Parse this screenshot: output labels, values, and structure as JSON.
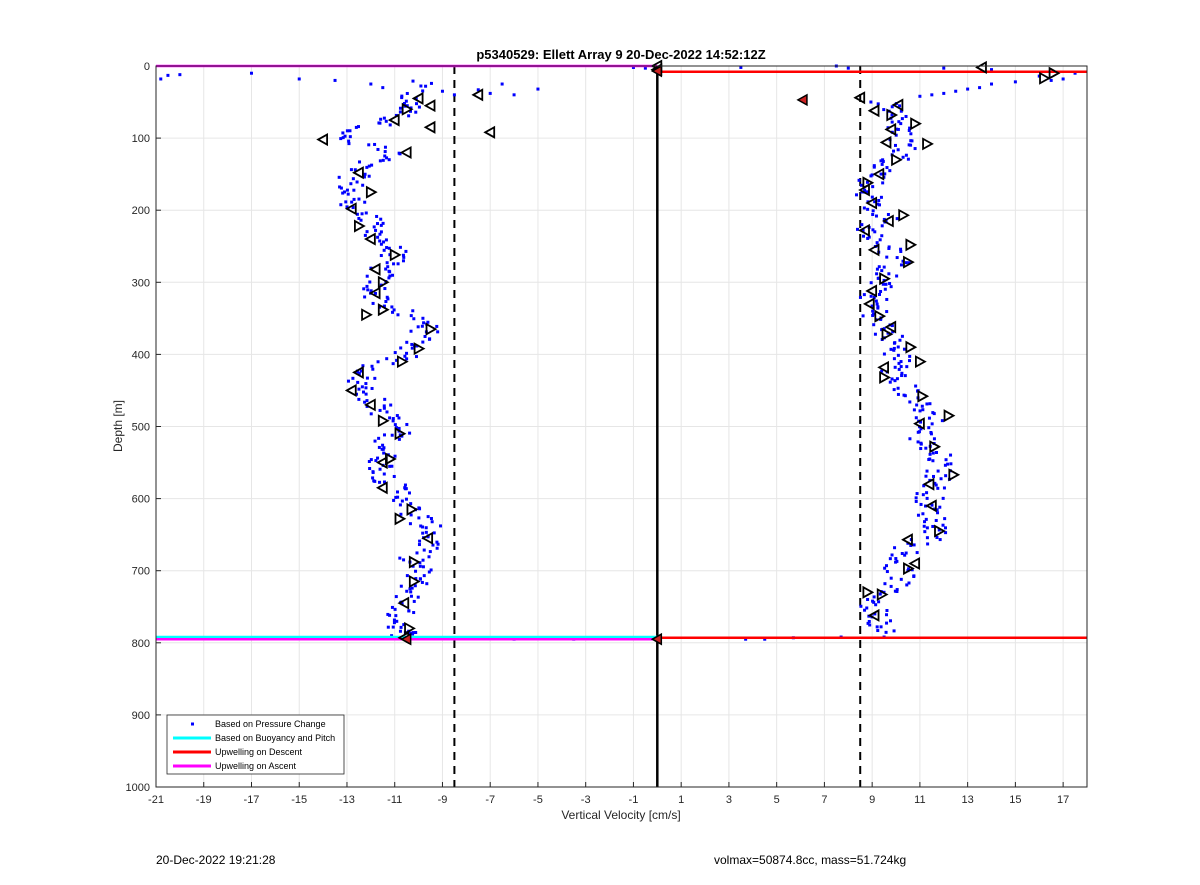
{
  "chart_data": {
    "type": "scatter",
    "title": "p5340529: Ellett Array 9 20-Dec-2022 14:52:12Z",
    "xlabel": "Vertical Velocity [cm/s]",
    "ylabel": "Depth [m]",
    "xlim": [
      -21,
      18
    ],
    "ylim": [
      0,
      1000
    ],
    "y_reversed": true,
    "grid": true,
    "legend_placement": "bottom-left",
    "xticks": [
      -21,
      -19,
      -17,
      -15,
      -13,
      -11,
      -9,
      -7,
      -5,
      -3,
      -1,
      1,
      3,
      5,
      7,
      9,
      11,
      13,
      15,
      17
    ],
    "yticks": [
      0,
      100,
      200,
      300,
      400,
      500,
      600,
      700,
      800,
      900,
      1000
    ],
    "legend": [
      {
        "label": "Based on Pressure Change",
        "color": "#0000ff",
        "style": "dot"
      },
      {
        "label": "Based on Buoyancy and Pitch",
        "color": "#00ffff",
        "style": "line"
      },
      {
        "label": "Upwelling on Descent",
        "color": "#ff0000",
        "style": "line"
      },
      {
        "label": "Upwelling on Ascent",
        "color": "#ff00ff",
        "style": "line"
      }
    ],
    "reference_lines": {
      "zero_solid_x": 0,
      "dashed_x": [
        -8.5,
        8.5
      ]
    },
    "series": [
      {
        "name": "Upwelling on Ascent",
        "color": "#ff00ff",
        "x": [
          -21,
          0
        ],
        "y": [
          0,
          0
        ]
      },
      {
        "name": "Upwelling on Descent",
        "color": "#ff0000",
        "x": [
          0,
          18
        ],
        "y": [
          8,
          8
        ]
      },
      {
        "name": "Based on Buoyancy and Pitch",
        "color": "#00ffff",
        "x": [
          -21,
          0
        ],
        "y": [
          792,
          792
        ]
      },
      {
        "name": "Upwelling on Ascent",
        "color": "#ff00ff",
        "x": [
          -21,
          0
        ],
        "y": [
          795,
          795
        ]
      },
      {
        "name": "Upwelling on Descent",
        "color": "#ff0000",
        "x": [
          0,
          18
        ],
        "y": [
          793,
          793
        ]
      }
    ],
    "ascent_profile": {
      "depth": [
        20,
        50,
        60,
        80,
        100,
        120,
        140,
        160,
        180,
        200,
        220,
        240,
        260,
        280,
        300,
        320,
        340,
        360,
        380,
        400,
        420,
        440,
        460,
        480,
        500,
        520,
        540,
        560,
        580,
        600,
        620,
        640,
        660,
        680,
        700,
        720,
        740,
        760,
        780,
        790
      ],
      "velocity": [
        -10,
        -10.5,
        -10.3,
        -11.5,
        -13.5,
        -11,
        -12.5,
        -12.8,
        -13,
        -12.5,
        -12,
        -11.5,
        -11,
        -11.5,
        -11.8,
        -11.8,
        -11,
        -9.5,
        -10,
        -10.5,
        -12,
        -12.5,
        -12,
        -11.5,
        -10.8,
        -11.2,
        -11.5,
        -11.5,
        -11.2,
        -10.5,
        -10.3,
        -9.5,
        -9.5,
        -10.2,
        -10,
        -10.2,
        -10.5,
        -10.8,
        -10.7,
        -10.5
      ],
      "spread": 0.6
    },
    "descent_profile": {
      "depth": [
        50,
        70,
        90,
        110,
        130,
        150,
        170,
        190,
        210,
        230,
        250,
        270,
        290,
        310,
        330,
        350,
        370,
        390,
        410,
        430,
        450,
        470,
        490,
        510,
        530,
        550,
        570,
        590,
        610,
        630,
        650,
        670,
        690,
        710,
        730,
        750,
        770,
        785
      ],
      "velocity": [
        9.5,
        10.2,
        10,
        10.5,
        10,
        9.3,
        8.8,
        9,
        9.5,
        8.7,
        9.6,
        10,
        9.5,
        9.2,
        9,
        9.2,
        9.6,
        10,
        10.2,
        9.8,
        10.5,
        11,
        11.5,
        11,
        11.4,
        12,
        11.8,
        11.5,
        11.3,
        11.6,
        11.8,
        10.5,
        10,
        10.3,
        9.5,
        9,
        9.3,
        9.8
      ],
      "spread": 0.6
    },
    "surface_scatter": [
      {
        "x": -20.8,
        "y": 18
      },
      {
        "x": -20.5,
        "y": 13
      },
      {
        "x": -20,
        "y": 12
      },
      {
        "x": -17,
        "y": 10
      },
      {
        "x": -15,
        "y": 18
      },
      {
        "x": -13.5,
        "y": 20
      },
      {
        "x": -12,
        "y": 25
      },
      {
        "x": -11.5,
        "y": 30
      },
      {
        "x": -9,
        "y": 35
      },
      {
        "x": -8.5,
        "y": 40
      },
      {
        "x": -7.5,
        "y": 33
      },
      {
        "x": -7,
        "y": 38
      },
      {
        "x": -6,
        "y": 40
      },
      {
        "x": -5,
        "y": 32
      },
      {
        "x": -6.5,
        "y": 25
      },
      {
        "x": -1,
        "y": 2
      },
      {
        "x": -0.5,
        "y": 3
      },
      {
        "x": 3.5,
        "y": 2
      },
      {
        "x": 7.5,
        "y": 0
      },
      {
        "x": 8,
        "y": 3
      },
      {
        "x": 12,
        "y": 3
      },
      {
        "x": 14,
        "y": 5
      },
      {
        "x": 16,
        "y": 14
      },
      {
        "x": 17,
        "y": 18
      },
      {
        "x": 15,
        "y": 22
      },
      {
        "x": 14,
        "y": 25
      },
      {
        "x": 13.5,
        "y": 30
      },
      {
        "x": 13,
        "y": 32
      },
      {
        "x": 12.5,
        "y": 35
      },
      {
        "x": 12,
        "y": 38
      },
      {
        "x": 11.5,
        "y": 40
      },
      {
        "x": 11,
        "y": 42
      },
      {
        "x": 17.5,
        "y": 10
      },
      {
        "x": 16.5,
        "y": 20
      }
    ],
    "bottom_scatter": [
      {
        "x": -6,
        "y": 795
      },
      {
        "x": -3.5,
        "y": 795
      },
      {
        "x": -0.5,
        "y": 794
      },
      {
        "x": 3.7,
        "y": 795
      },
      {
        "x": 4.5,
        "y": 795
      },
      {
        "x": 5.7,
        "y": 793
      },
      {
        "x": 7.7,
        "y": 792
      },
      {
        "x": 9.5,
        "y": 792
      }
    ],
    "buoyancy_markers": {
      "ascent": [
        {
          "x": -10,
          "y": 45,
          "dir": "left"
        },
        {
          "x": -10.5,
          "y": 60,
          "dir": "right"
        },
        {
          "x": -9.5,
          "y": 55,
          "dir": "left"
        },
        {
          "x": -11,
          "y": 75,
          "dir": "left"
        },
        {
          "x": -9.5,
          "y": 85,
          "dir": "left"
        },
        {
          "x": -7.5,
          "y": 40,
          "dir": "left"
        },
        {
          "x": -7,
          "y": 92,
          "dir": "left"
        },
        {
          "x": -14,
          "y": 102,
          "dir": "left"
        },
        {
          "x": -10.5,
          "y": 120,
          "dir": "left"
        },
        {
          "x": -12.5,
          "y": 148,
          "dir": "left"
        },
        {
          "x": -12,
          "y": 175,
          "dir": "right"
        },
        {
          "x": -12.8,
          "y": 198,
          "dir": "left"
        },
        {
          "x": -12.5,
          "y": 222,
          "dir": "right"
        },
        {
          "x": -12,
          "y": 240,
          "dir": "left"
        },
        {
          "x": -11,
          "y": 262,
          "dir": "right"
        },
        {
          "x": -11.8,
          "y": 282,
          "dir": "left"
        },
        {
          "x": -11.5,
          "y": 300,
          "dir": "right"
        },
        {
          "x": -11.8,
          "y": 315,
          "dir": "left"
        },
        {
          "x": -11.5,
          "y": 338,
          "dir": "right"
        },
        {
          "x": -12.2,
          "y": 345,
          "dir": "right"
        },
        {
          "x": -9.5,
          "y": 365,
          "dir": "right"
        },
        {
          "x": -10,
          "y": 392,
          "dir": "right"
        },
        {
          "x": -10.7,
          "y": 410,
          "dir": "right"
        },
        {
          "x": -12.5,
          "y": 425,
          "dir": "left"
        },
        {
          "x": -12.8,
          "y": 450,
          "dir": "left"
        },
        {
          "x": -12,
          "y": 470,
          "dir": "left"
        },
        {
          "x": -11.5,
          "y": 492,
          "dir": "right"
        },
        {
          "x": -10.8,
          "y": 510,
          "dir": "right"
        },
        {
          "x": -11.2,
          "y": 545,
          "dir": "right"
        },
        {
          "x": -11.5,
          "y": 550,
          "dir": "left"
        },
        {
          "x": -11.5,
          "y": 585,
          "dir": "left"
        },
        {
          "x": -10.3,
          "y": 615,
          "dir": "right"
        },
        {
          "x": -10.8,
          "y": 628,
          "dir": "right"
        },
        {
          "x": -9.6,
          "y": 655,
          "dir": "left"
        },
        {
          "x": -10.2,
          "y": 688,
          "dir": "right"
        },
        {
          "x": -10.2,
          "y": 715,
          "dir": "right"
        },
        {
          "x": -10.6,
          "y": 745,
          "dir": "left"
        },
        {
          "x": -10.4,
          "y": 780,
          "dir": "right"
        },
        {
          "x": -10.6,
          "y": 793,
          "dir": "left"
        }
      ],
      "descent": [
        {
          "x": 13.6,
          "y": 2,
          "dir": "left"
        },
        {
          "x": 16.6,
          "y": 10,
          "dir": "right"
        },
        {
          "x": 16.2,
          "y": 17,
          "dir": "right"
        },
        {
          "x": 8.5,
          "y": 44,
          "dir": "left"
        },
        {
          "x": 10.1,
          "y": 54,
          "dir": "left"
        },
        {
          "x": 9.1,
          "y": 62,
          "dir": "left"
        },
        {
          "x": 9.8,
          "y": 68,
          "dir": "right"
        },
        {
          "x": 10.8,
          "y": 80,
          "dir": "right"
        },
        {
          "x": 9.8,
          "y": 88,
          "dir": "left"
        },
        {
          "x": 9.6,
          "y": 106,
          "dir": "left"
        },
        {
          "x": 11.3,
          "y": 108,
          "dir": "right"
        },
        {
          "x": 10,
          "y": 130,
          "dir": "right"
        },
        {
          "x": 9.3,
          "y": 150,
          "dir": "left"
        },
        {
          "x": 8.8,
          "y": 162,
          "dir": "right"
        },
        {
          "x": 8.7,
          "y": 172,
          "dir": "left"
        },
        {
          "x": 9,
          "y": 190,
          "dir": "left"
        },
        {
          "x": 10.3,
          "y": 207,
          "dir": "right"
        },
        {
          "x": 9.7,
          "y": 215,
          "dir": "left"
        },
        {
          "x": 8.7,
          "y": 228,
          "dir": "left"
        },
        {
          "x": 10.6,
          "y": 248,
          "dir": "right"
        },
        {
          "x": 9.1,
          "y": 255,
          "dir": "left"
        },
        {
          "x": 10.5,
          "y": 272,
          "dir": "right"
        },
        {
          "x": 9.5,
          "y": 295,
          "dir": "right"
        },
        {
          "x": 9,
          "y": 312,
          "dir": "left"
        },
        {
          "x": 8.9,
          "y": 330,
          "dir": "left"
        },
        {
          "x": 9.3,
          "y": 347,
          "dir": "right"
        },
        {
          "x": 9.8,
          "y": 362,
          "dir": "left"
        },
        {
          "x": 9.6,
          "y": 372,
          "dir": "right"
        },
        {
          "x": 10.6,
          "y": 390,
          "dir": "right"
        },
        {
          "x": 11,
          "y": 410,
          "dir": "right"
        },
        {
          "x": 9.5,
          "y": 418,
          "dir": "left"
        },
        {
          "x": 9.5,
          "y": 432,
          "dir": "right"
        },
        {
          "x": 11.1,
          "y": 458,
          "dir": "right"
        },
        {
          "x": 12.2,
          "y": 485,
          "dir": "right"
        },
        {
          "x": 11,
          "y": 496,
          "dir": "left"
        },
        {
          "x": 11.6,
          "y": 528,
          "dir": "right"
        },
        {
          "x": 12.4,
          "y": 567,
          "dir": "right"
        },
        {
          "x": 11.4,
          "y": 580,
          "dir": "left"
        },
        {
          "x": 11.5,
          "y": 610,
          "dir": "left"
        },
        {
          "x": 11.8,
          "y": 645,
          "dir": "right"
        },
        {
          "x": 10.5,
          "y": 657,
          "dir": "left"
        },
        {
          "x": 10.8,
          "y": 690,
          "dir": "left"
        },
        {
          "x": 10.5,
          "y": 697,
          "dir": "right"
        },
        {
          "x": 9.4,
          "y": 733,
          "dir": "right"
        },
        {
          "x": 8.8,
          "y": 730,
          "dir": "right"
        },
        {
          "x": 9.1,
          "y": 762,
          "dir": "left"
        },
        {
          "x": 0,
          "y": 0,
          "dir": "left"
        },
        {
          "x": 0,
          "y": 5,
          "dir": "left"
        }
      ],
      "filled": [
        {
          "x": 6.1,
          "y": 47,
          "color": "#cc2222"
        },
        {
          "x": -10.5,
          "y": 795,
          "color": "#cc2222"
        },
        {
          "x": 0,
          "y": 795,
          "color": "#cc2222"
        },
        {
          "x": 0,
          "y": 7,
          "color": "#cc2222"
        }
      ]
    }
  },
  "footer": {
    "timestamp": "20-Dec-2022 19:21:28",
    "info": "volmax=50874.8cc, mass=51.724kg"
  }
}
